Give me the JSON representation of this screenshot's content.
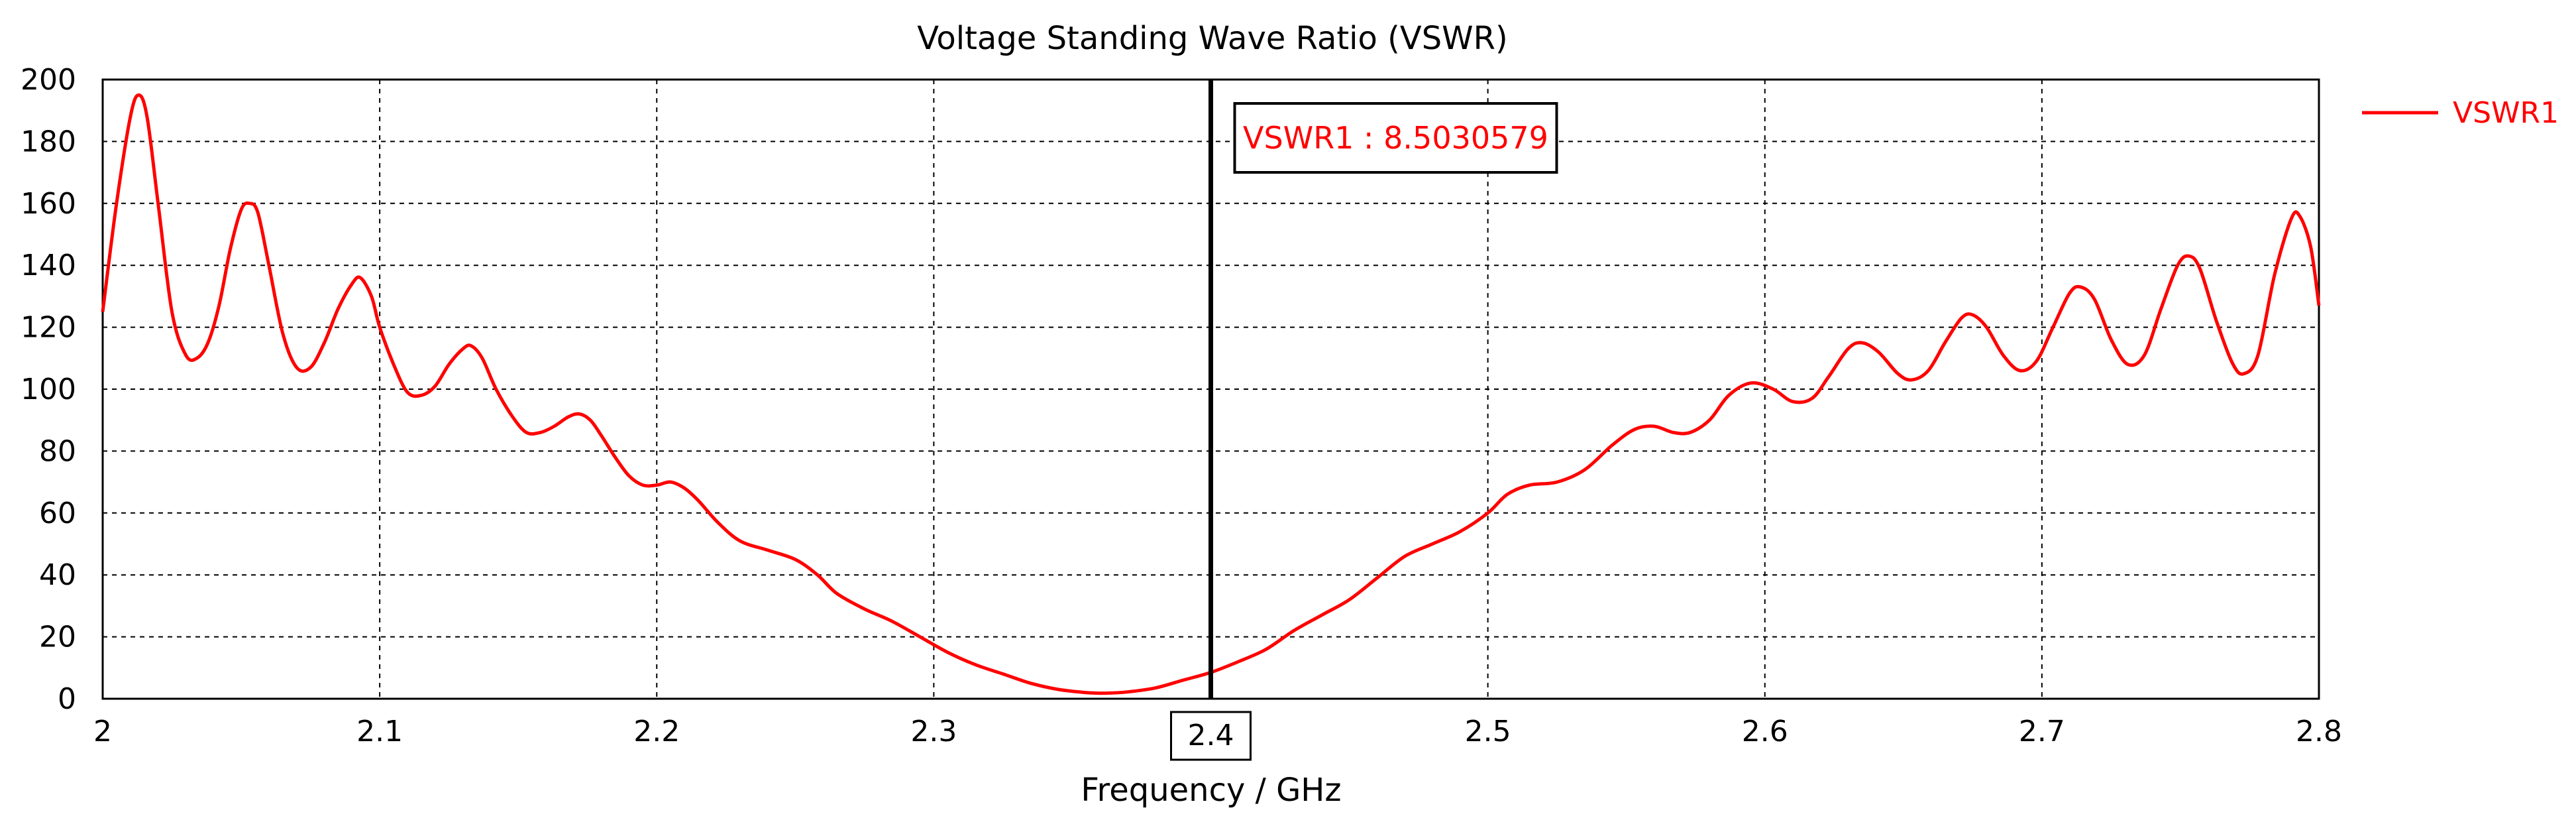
{
  "chart_data": {
    "type": "line",
    "title": "Voltage Standing Wave Ratio (VSWR)",
    "xlabel": "Frequency / GHz",
    "ylabel": "",
    "xlim": [
      2,
      2.8
    ],
    "ylim": [
      0,
      200
    ],
    "x_ticks": [
      2,
      2.1,
      2.2,
      2.3,
      2.4,
      2.5,
      2.6,
      2.7,
      2.8
    ],
    "x_tick_labels": [
      "2",
      "2.1",
      "2.2",
      "2.3",
      "2.4",
      "2.5",
      "2.6",
      "2.7",
      "2.8"
    ],
    "y_ticks": [
      0,
      20,
      40,
      60,
      80,
      100,
      120,
      140,
      160,
      180,
      200
    ],
    "y_tick_labels": [
      "0",
      "20",
      "40",
      "60",
      "80",
      "100",
      "120",
      "140",
      "160",
      "180",
      "200"
    ],
    "grid": true,
    "legend_position": "right",
    "series": [
      {
        "name": "VSWR1",
        "color": "#ff0000",
        "points": [
          [
            2.0,
            125
          ],
          [
            2.005,
            160
          ],
          [
            2.01,
            188
          ],
          [
            2.013,
            195
          ],
          [
            2.016,
            188
          ],
          [
            2.02,
            160
          ],
          [
            2.025,
            125
          ],
          [
            2.03,
            111
          ],
          [
            2.034,
            110
          ],
          [
            2.038,
            115
          ],
          [
            2.042,
            127
          ],
          [
            2.046,
            145
          ],
          [
            2.05,
            158
          ],
          [
            2.053,
            160
          ],
          [
            2.056,
            157
          ],
          [
            2.06,
            140
          ],
          [
            2.065,
            118
          ],
          [
            2.07,
            107
          ],
          [
            2.075,
            107
          ],
          [
            2.08,
            115
          ],
          [
            2.085,
            126
          ],
          [
            2.09,
            134
          ],
          [
            2.093,
            136
          ],
          [
            2.097,
            130
          ],
          [
            2.1,
            120
          ],
          [
            2.105,
            108
          ],
          [
            2.11,
            99
          ],
          [
            2.115,
            98
          ],
          [
            2.12,
            101
          ],
          [
            2.125,
            108
          ],
          [
            2.13,
            113
          ],
          [
            2.133,
            114
          ],
          [
            2.137,
            110
          ],
          [
            2.142,
            100
          ],
          [
            2.148,
            91
          ],
          [
            2.153,
            86
          ],
          [
            2.158,
            86
          ],
          [
            2.163,
            88
          ],
          [
            2.168,
            91
          ],
          [
            2.172,
            92
          ],
          [
            2.176,
            90
          ],
          [
            2.18,
            85
          ],
          [
            2.185,
            78
          ],
          [
            2.19,
            72
          ],
          [
            2.195,
            69
          ],
          [
            2.2,
            69
          ],
          [
            2.205,
            70
          ],
          [
            2.21,
            68
          ],
          [
            2.215,
            64
          ],
          [
            2.222,
            57
          ],
          [
            2.23,
            51
          ],
          [
            2.24,
            48
          ],
          [
            2.25,
            45
          ],
          [
            2.258,
            40
          ],
          [
            2.265,
            34
          ],
          [
            2.275,
            29
          ],
          [
            2.285,
            25
          ],
          [
            2.295,
            20
          ],
          [
            2.305,
            15
          ],
          [
            2.315,
            11
          ],
          [
            2.325,
            8
          ],
          [
            2.335,
            5
          ],
          [
            2.345,
            3
          ],
          [
            2.355,
            2
          ],
          [
            2.362,
            1.8
          ],
          [
            2.37,
            2.2
          ],
          [
            2.38,
            3.5
          ],
          [
            2.39,
            6
          ],
          [
            2.4,
            8.5
          ],
          [
            2.41,
            12
          ],
          [
            2.42,
            16
          ],
          [
            2.43,
            22
          ],
          [
            2.44,
            27
          ],
          [
            2.45,
            32
          ],
          [
            2.46,
            39
          ],
          [
            2.47,
            46
          ],
          [
            2.48,
            50
          ],
          [
            2.49,
            54
          ],
          [
            2.5,
            60
          ],
          [
            2.507,
            66
          ],
          [
            2.515,
            69
          ],
          [
            2.525,
            70
          ],
          [
            2.535,
            74
          ],
          [
            2.545,
            82
          ],
          [
            2.553,
            87
          ],
          [
            2.56,
            88
          ],
          [
            2.567,
            86
          ],
          [
            2.573,
            86
          ],
          [
            2.58,
            90
          ],
          [
            2.587,
            98
          ],
          [
            2.595,
            102
          ],
          [
            2.603,
            100
          ],
          [
            2.61,
            96
          ],
          [
            2.617,
            97
          ],
          [
            2.623,
            104
          ],
          [
            2.63,
            113
          ],
          [
            2.635,
            115
          ],
          [
            2.641,
            112
          ],
          [
            2.648,
            105
          ],
          [
            2.653,
            103
          ],
          [
            2.659,
            106
          ],
          [
            2.665,
            115
          ],
          [
            2.671,
            123
          ],
          [
            2.675,
            124
          ],
          [
            2.68,
            120
          ],
          [
            2.686,
            111
          ],
          [
            2.692,
            106
          ],
          [
            2.698,
            109
          ],
          [
            2.704,
            120
          ],
          [
            2.71,
            131
          ],
          [
            2.714,
            133
          ],
          [
            2.719,
            129
          ],
          [
            2.725,
            116
          ],
          [
            2.731,
            108
          ],
          [
            2.737,
            111
          ],
          [
            2.743,
            126
          ],
          [
            2.749,
            140
          ],
          [
            2.753,
            143
          ],
          [
            2.757,
            139
          ],
          [
            2.763,
            122
          ],
          [
            2.769,
            108
          ],
          [
            2.773,
            105
          ],
          [
            2.778,
            111
          ],
          [
            2.784,
            137
          ],
          [
            2.79,
            155
          ],
          [
            2.793,
            156
          ],
          [
            2.797,
            146
          ],
          [
            2.8,
            127
          ]
        ]
      }
    ],
    "markers": [
      {
        "x": 2.4,
        "x_label": "2.4",
        "y": 8.5030579,
        "label": "VSWR1 : 8.5030579"
      }
    ]
  }
}
